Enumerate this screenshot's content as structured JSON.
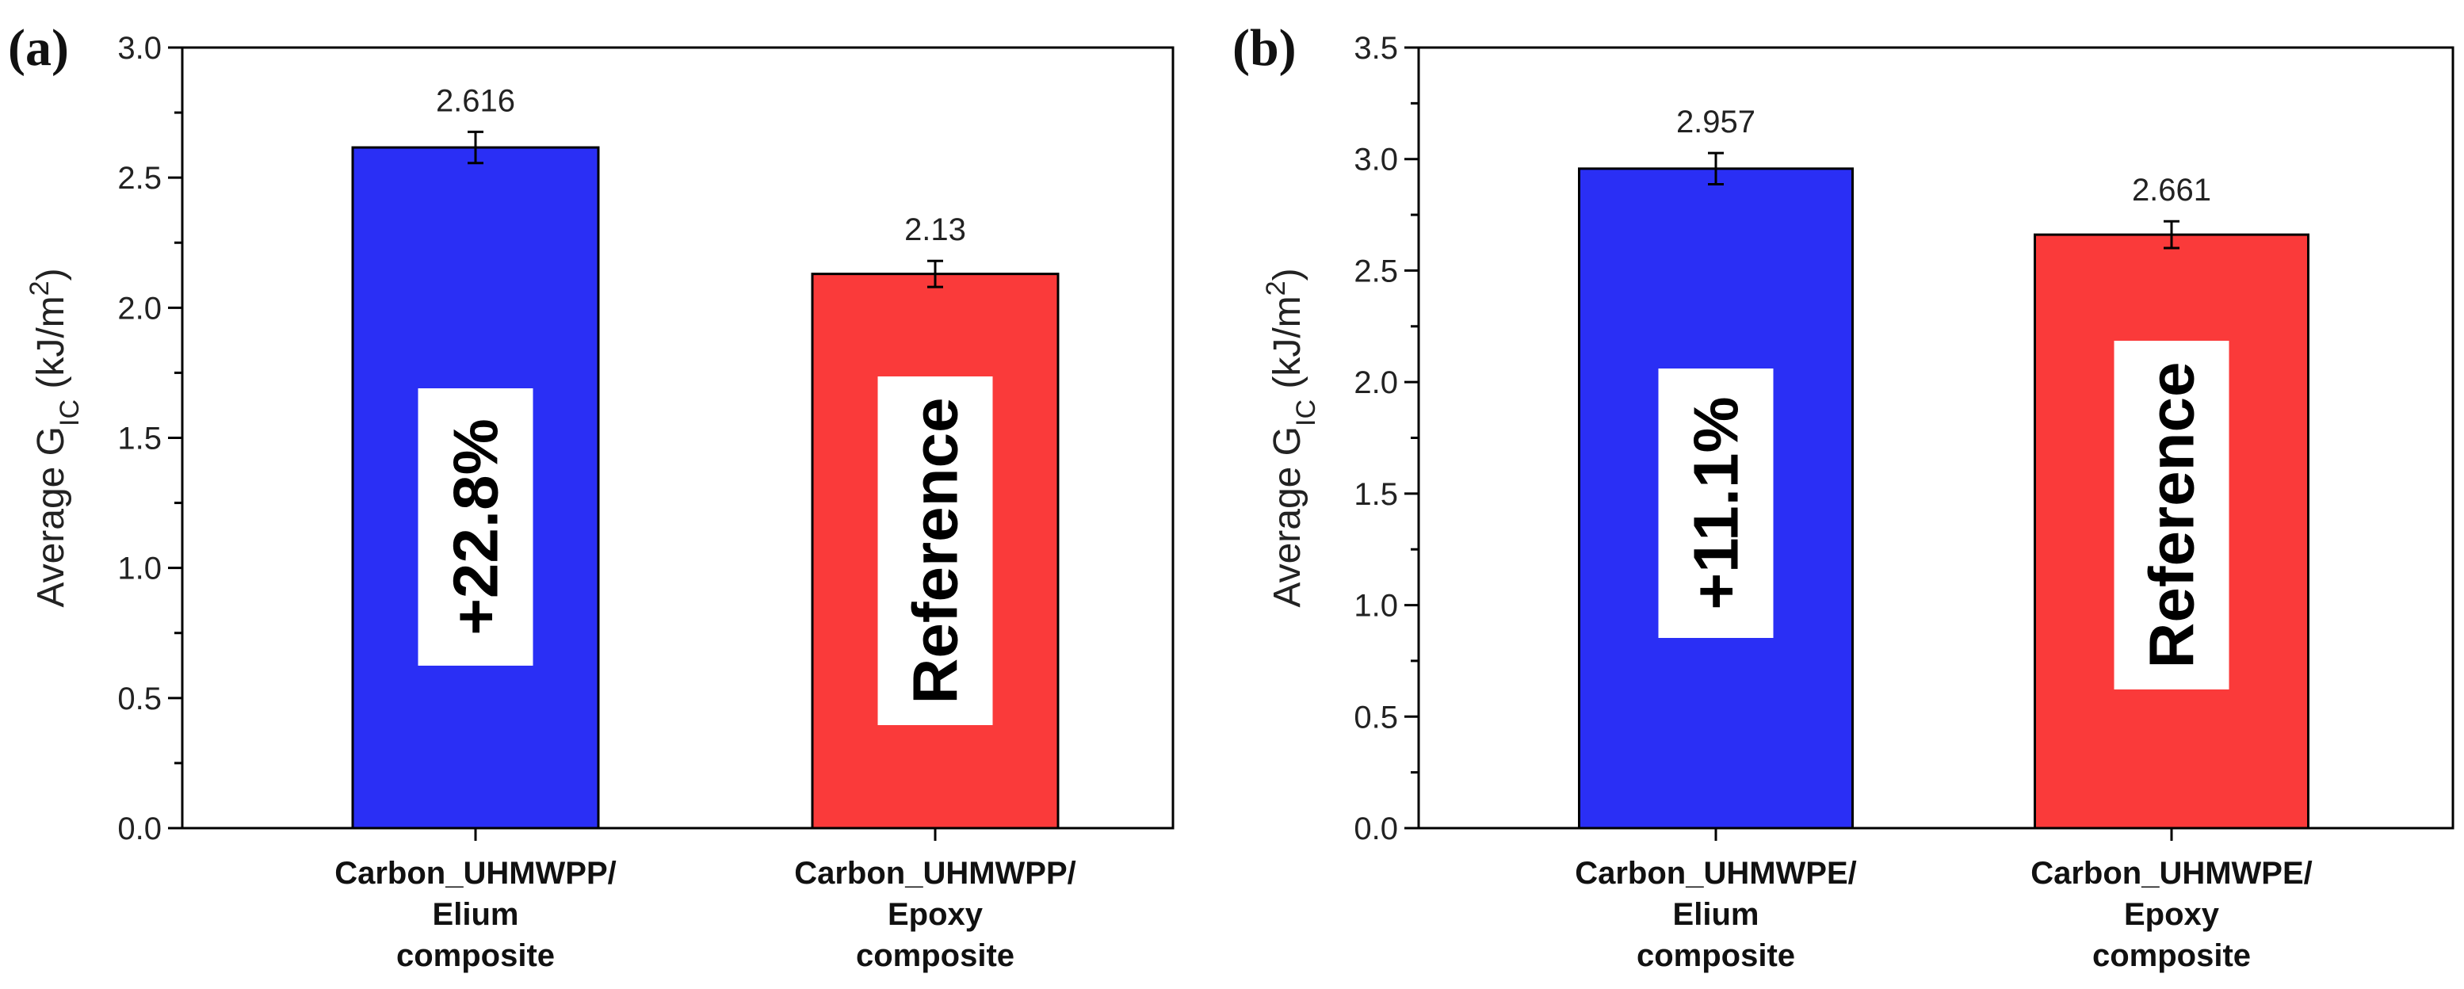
{
  "colors": {
    "blue_bar": "#2a2ff5",
    "red_bar": "#fa3a3a",
    "axis": "#000000"
  },
  "chart_data": [
    {
      "type": "bar",
      "panel": "(a)",
      "ylabel_prefix": "Average G",
      "ylabel_sub": "IC",
      "ylabel_unit": " (kJ/m",
      "ylabel_sup": "2",
      "ylabel_close": ")",
      "ylim": [
        0,
        3.0
      ],
      "yticks": [
        "0.0",
        "0.5",
        "1.0",
        "1.5",
        "2.0",
        "2.5",
        "3.0"
      ],
      "categories": [
        [
          "Carbon_UHMWPP/",
          "Elium",
          "composite"
        ],
        [
          "Carbon_UHMWPP/",
          "Epoxy",
          "composite"
        ]
      ],
      "values": [
        2.616,
        2.13
      ],
      "value_labels": [
        "2.616",
        "2.13"
      ],
      "errors": [
        0.06,
        0.05
      ],
      "bar_notes": [
        "+22.8%",
        "Reference"
      ]
    },
    {
      "type": "bar",
      "panel": "(b)",
      "ylabel_prefix": "Average G",
      "ylabel_sub": "IC",
      "ylabel_unit": " (kJ/m",
      "ylabel_sup": "2",
      "ylabel_close": ")",
      "ylim": [
        0,
        3.5
      ],
      "yticks": [
        "0.0",
        "0.5",
        "1.0",
        "1.5",
        "2.0",
        "2.5",
        "3.0",
        "3.5"
      ],
      "categories": [
        [
          "Carbon_UHMWPE/",
          "Elium",
          "composite"
        ],
        [
          "Carbon_UHMWPE/",
          "Epoxy",
          "composite"
        ]
      ],
      "values": [
        2.957,
        2.661
      ],
      "value_labels": [
        "2.957",
        "2.661"
      ],
      "errors": [
        0.07,
        0.06
      ],
      "bar_notes": [
        "+11.1%",
        "Reference"
      ]
    }
  ]
}
